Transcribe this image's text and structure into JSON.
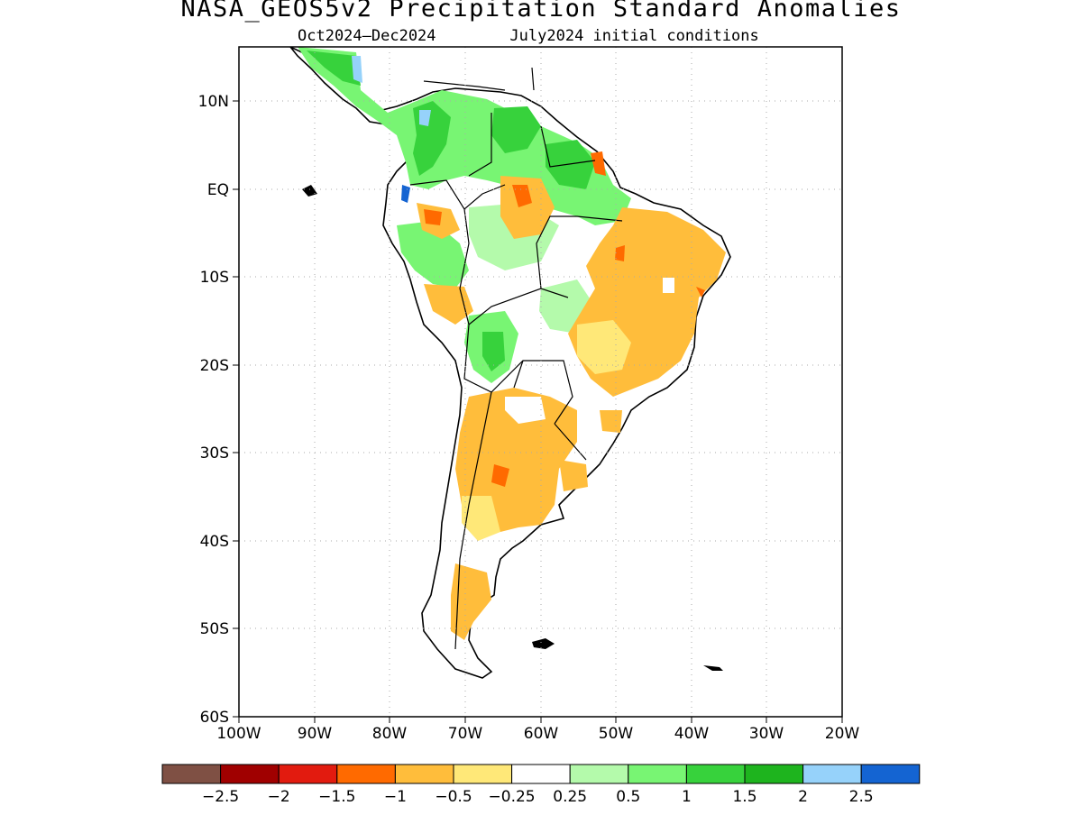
{
  "title": "NASA_GEOS5v2 Precipitation Standard Anomalies",
  "subtitle": {
    "period": "Oct2024–Dec2024",
    "init": "July2024 initial conditions"
  },
  "map": {
    "region": "South America",
    "lon_range": [
      -100,
      -20
    ],
    "lat_range": [
      -60,
      15
    ],
    "lat_ticks": [
      "10N",
      "EQ",
      "10S",
      "20S",
      "30S",
      "40S",
      "50S",
      "60S"
    ],
    "lon_ticks": [
      "100W",
      "90W",
      "80W",
      "70W",
      "60W",
      "50W",
      "40W",
      "30W",
      "20W"
    ],
    "grid": "dotted"
  },
  "colorbar": {
    "colors": [
      "#7f5044",
      "#a00000",
      "#e21b0f",
      "#ff6a00",
      "#ffbd3b",
      "#ffe878",
      "#ffffff",
      "#b4faab",
      "#78f573",
      "#37d23c",
      "#1eb41e",
      "#96d2fa",
      "#1464d2"
    ],
    "labels": [
      "−2.5",
      "−2",
      "−1.5",
      "−1",
      "−0.5",
      "−0.25",
      "0.25",
      "0.5",
      "1",
      "1.5",
      "2",
      "2.5"
    ]
  },
  "chart_data": {
    "type": "heatmap",
    "variable": "precipitation standard anomaly",
    "x_range": [
      -100,
      -20
    ],
    "y_range": [
      -60,
      15
    ],
    "anomaly_regions": [
      {
        "area": "Central America / Colombia / Venezuela",
        "lon": [
          -80,
          -60
        ],
        "lat": [
          0,
          13
        ],
        "class": "1 to 1.5"
      },
      {
        "area": "Eastern Brazil",
        "lon": [
          -55,
          -35
        ],
        "lat": [
          -22,
          -3
        ],
        "class": "-1 to -0.5"
      },
      {
        "area": "Argentina",
        "lon": [
          -70,
          -58
        ],
        "lat": [
          -40,
          -24
        ],
        "class": "-1 to -0.5"
      },
      {
        "area": "Patagonia",
        "lon": [
          -73,
          -67
        ],
        "lat": [
          -50,
          -43
        ],
        "class": "-1 to -0.5"
      },
      {
        "area": "Bolivia / Paraguay",
        "lon": [
          -66,
          -60
        ],
        "lat": [
          -22,
          -15
        ],
        "class": "0.5 to 1.5"
      }
    ]
  }
}
